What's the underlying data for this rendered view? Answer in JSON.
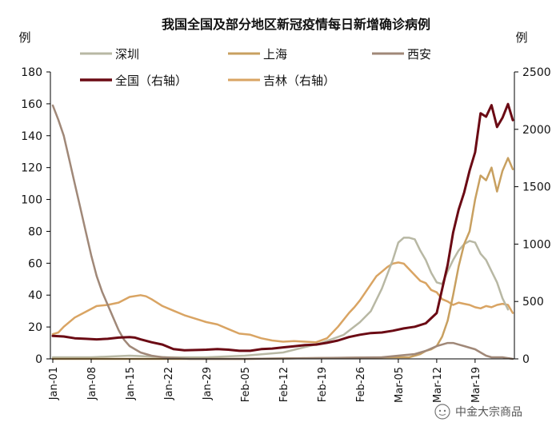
{
  "chart_data": {
    "type": "line",
    "title": "我国全国及部分地区新冠疫情每日新增确诊病例",
    "ylabel_left": "例",
    "ylabel_right": "例",
    "ylim_left": [
      0,
      180
    ],
    "ylim_right": [
      0,
      2500
    ],
    "yticks_left": [
      0,
      20,
      40,
      60,
      80,
      100,
      120,
      140,
      160,
      180
    ],
    "yticks_right": [
      0,
      500,
      1000,
      1500,
      2000,
      2500
    ],
    "xlim": [
      0,
      83
    ],
    "x_ticks": [
      {
        "x": 0,
        "label": "Jan-01"
      },
      {
        "x": 7,
        "label": "Jan-08"
      },
      {
        "x": 14,
        "label": "Jan-15"
      },
      {
        "x": 21,
        "label": "Jan-22"
      },
      {
        "x": 28,
        "label": "Jan-29"
      },
      {
        "x": 35,
        "label": "Feb-05"
      },
      {
        "x": 42,
        "label": "Feb-12"
      },
      {
        "x": 49,
        "label": "Feb-19"
      },
      {
        "x": 56,
        "label": "Feb-26"
      },
      {
        "x": 63,
        "label": "Mar-05"
      },
      {
        "x": 70,
        "label": "Mar-12"
      },
      {
        "x": 77,
        "label": "Mar-19"
      }
    ],
    "grid": false,
    "legend_position": "top",
    "series": [
      {
        "name": "深圳",
        "axis": "left",
        "color": "#b8b8a4",
        "width": 2.5,
        "points": [
          [
            0,
            1
          ],
          [
            7,
            1
          ],
          [
            14,
            2
          ],
          [
            21,
            1
          ],
          [
            28,
            1
          ],
          [
            35,
            2
          ],
          [
            42,
            4
          ],
          [
            49,
            10
          ],
          [
            53,
            15
          ],
          [
            56,
            23
          ],
          [
            58,
            30
          ],
          [
            60,
            44
          ],
          [
            62,
            62
          ],
          [
            63,
            73
          ],
          [
            64,
            76
          ],
          [
            65,
            76
          ],
          [
            66,
            75
          ],
          [
            67,
            68
          ],
          [
            68,
            62
          ],
          [
            69,
            54
          ],
          [
            70,
            48
          ],
          [
            71,
            47
          ],
          [
            72,
            55
          ],
          [
            73,
            62
          ],
          [
            74,
            68
          ],
          [
            75,
            72
          ],
          [
            76,
            74
          ],
          [
            77,
            73
          ],
          [
            78,
            66
          ],
          [
            79,
            62
          ],
          [
            80,
            55
          ],
          [
            81,
            48
          ],
          [
            82,
            38
          ],
          [
            83,
            31
          ]
        ]
      },
      {
        "name": "上海",
        "axis": "left",
        "color": "#c8a060",
        "width": 2.5,
        "points": [
          [
            0,
            0
          ],
          [
            35,
            0
          ],
          [
            62,
            1
          ],
          [
            65,
            1
          ],
          [
            66,
            2
          ],
          [
            67,
            3
          ],
          [
            68,
            5
          ],
          [
            69,
            6
          ],
          [
            70,
            8
          ],
          [
            71,
            14
          ],
          [
            72,
            24
          ],
          [
            73,
            40
          ],
          [
            74,
            58
          ],
          [
            75,
            72
          ],
          [
            76,
            80
          ],
          [
            77,
            100
          ],
          [
            78,
            115
          ],
          [
            79,
            112
          ],
          [
            80,
            120
          ],
          [
            81,
            105
          ],
          [
            82,
            118
          ],
          [
            83,
            126
          ],
          [
            84,
            119
          ]
        ]
      },
      {
        "name": "西安",
        "axis": "left",
        "color": "#a08878",
        "width": 2.5,
        "points": [
          [
            0,
            159
          ],
          [
            1,
            150
          ],
          [
            2,
            140
          ],
          [
            3,
            125
          ],
          [
            4,
            110
          ],
          [
            5,
            95
          ],
          [
            6,
            80
          ],
          [
            7,
            65
          ],
          [
            8,
            52
          ],
          [
            9,
            42
          ],
          [
            10,
            34
          ],
          [
            11,
            26
          ],
          [
            12,
            18
          ],
          [
            13,
            12
          ],
          [
            14,
            8
          ],
          [
            15,
            6
          ],
          [
            16,
            4
          ],
          [
            17,
            3
          ],
          [
            18,
            2
          ],
          [
            20,
            1
          ],
          [
            25,
            0
          ],
          [
            35,
            0
          ],
          [
            60,
            1
          ],
          [
            66,
            3
          ],
          [
            68,
            5
          ],
          [
            70,
            8
          ],
          [
            71,
            9
          ],
          [
            72,
            10
          ],
          [
            73,
            10
          ],
          [
            74,
            9
          ],
          [
            75,
            8
          ],
          [
            76,
            7
          ],
          [
            77,
            6
          ],
          [
            78,
            4
          ],
          [
            79,
            2
          ],
          [
            80,
            1
          ],
          [
            82,
            1
          ],
          [
            84,
            0
          ]
        ]
      },
      {
        "name": "全国（右轴）",
        "axis": "right",
        "color": "#6b0a14",
        "width": 3,
        "points": [
          [
            0,
            200
          ],
          [
            2,
            195
          ],
          [
            4,
            180
          ],
          [
            6,
            175
          ],
          [
            8,
            170
          ],
          [
            10,
            175
          ],
          [
            12,
            185
          ],
          [
            14,
            190
          ],
          [
            15,
            185
          ],
          [
            16,
            170
          ],
          [
            18,
            145
          ],
          [
            20,
            125
          ],
          [
            22,
            85
          ],
          [
            24,
            75
          ],
          [
            28,
            80
          ],
          [
            30,
            85
          ],
          [
            32,
            80
          ],
          [
            34,
            70
          ],
          [
            36,
            70
          ],
          [
            38,
            85
          ],
          [
            40,
            90
          ],
          [
            42,
            100
          ],
          [
            44,
            110
          ],
          [
            46,
            120
          ],
          [
            48,
            125
          ],
          [
            50,
            140
          ],
          [
            52,
            160
          ],
          [
            54,
            190
          ],
          [
            56,
            210
          ],
          [
            58,
            225
          ],
          [
            60,
            230
          ],
          [
            62,
            245
          ],
          [
            64,
            265
          ],
          [
            66,
            280
          ],
          [
            68,
            310
          ],
          [
            70,
            400
          ],
          [
            72,
            820
          ],
          [
            73,
            1100
          ],
          [
            74,
            1300
          ],
          [
            75,
            1450
          ],
          [
            76,
            1640
          ],
          [
            77,
            1800
          ],
          [
            78,
            2140
          ],
          [
            79,
            2110
          ],
          [
            80,
            2210
          ],
          [
            81,
            2020
          ],
          [
            82,
            2100
          ],
          [
            83,
            2220
          ],
          [
            84,
            2080
          ]
        ]
      },
      {
        "name": "吉林（右轴）",
        "axis": "right",
        "color": "#d9a463",
        "width": 2.5,
        "points": [
          [
            0,
            215
          ],
          [
            1,
            230
          ],
          [
            2,
            280
          ],
          [
            4,
            360
          ],
          [
            6,
            410
          ],
          [
            8,
            460
          ],
          [
            10,
            470
          ],
          [
            12,
            490
          ],
          [
            14,
            540
          ],
          [
            16,
            555
          ],
          [
            17,
            545
          ],
          [
            18,
            520
          ],
          [
            20,
            460
          ],
          [
            22,
            420
          ],
          [
            24,
            380
          ],
          [
            26,
            350
          ],
          [
            28,
            320
          ],
          [
            30,
            300
          ],
          [
            32,
            260
          ],
          [
            34,
            220
          ],
          [
            36,
            210
          ],
          [
            38,
            180
          ],
          [
            40,
            160
          ],
          [
            42,
            150
          ],
          [
            44,
            155
          ],
          [
            46,
            150
          ],
          [
            48,
            145
          ],
          [
            50,
            180
          ],
          [
            52,
            280
          ],
          [
            54,
            400
          ],
          [
            55,
            450
          ],
          [
            56,
            510
          ],
          [
            57,
            580
          ],
          [
            58,
            650
          ],
          [
            59,
            720
          ],
          [
            60,
            760
          ],
          [
            61,
            800
          ],
          [
            62,
            830
          ],
          [
            63,
            840
          ],
          [
            64,
            830
          ],
          [
            65,
            780
          ],
          [
            66,
            730
          ],
          [
            67,
            680
          ],
          [
            68,
            660
          ],
          [
            69,
            600
          ],
          [
            70,
            580
          ],
          [
            71,
            520
          ],
          [
            72,
            500
          ],
          [
            73,
            470
          ],
          [
            74,
            490
          ],
          [
            75,
            480
          ],
          [
            76,
            470
          ],
          [
            77,
            450
          ],
          [
            78,
            440
          ],
          [
            79,
            460
          ],
          [
            80,
            450
          ],
          [
            81,
            470
          ],
          [
            82,
            480
          ],
          [
            83,
            470
          ],
          [
            84,
            400
          ]
        ]
      }
    ],
    "legend": [
      {
        "name": "深圳",
        "color": "#b8b8a4"
      },
      {
        "name": "上海",
        "color": "#c8a060"
      },
      {
        "name": "西安",
        "color": "#a08878"
      },
      {
        "name": "全国（右轴）",
        "color": "#6b0a14"
      },
      {
        "name": "吉林（右轴）",
        "color": "#d9a463"
      }
    ]
  },
  "watermark": {
    "text": "中金大宗商品",
    "icon": "wechat-icon"
  }
}
